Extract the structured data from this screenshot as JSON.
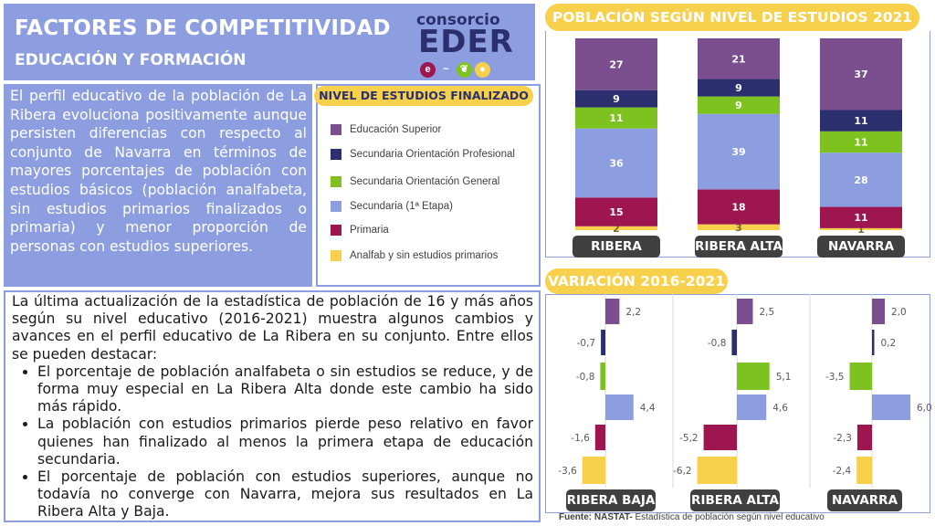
{
  "header": {
    "title": "FACTORES DE COMPETITIVIDAD",
    "subtitle": "EDUCACIÓN Y FORMACIÓN",
    "logo_top": "consorcio",
    "logo_main": "EDER"
  },
  "intro_text": "El perfil educativo de la población de La Ribera evoluciona positivamente aunque persisten diferencias con respecto al conjunto de Navarra en términos de mayores porcentajes de población con estudios básicos (población analfabeta, sin estudios primarios finalizados o primaria) y menor proporción de personas con estudios superiores.",
  "legend": {
    "title": "NIVEL DE ESTUDIOS FINALIZADO",
    "items": [
      {
        "label": "Educación Superior",
        "color": "#7b4f8f"
      },
      {
        "label": "Secundaria Orientación Profesional",
        "color": "#2b2f6e"
      },
      {
        "label": "Secundaria  Orientación General",
        "color": "#7dc21e"
      },
      {
        "label": "Secundaria (1ª Etapa)",
        "color": "#8d9ee0"
      },
      {
        "label": "Primaria",
        "color": "#9e1650"
      },
      {
        "label": "Analfab y sin estudios primarios",
        "color": "#f7d14c"
      }
    ]
  },
  "bottom": {
    "intro": "La última actualización de la estadística de población de 16 y más años según su nivel educativo (2016-2021) muestra algunos cambios y avances en el perfil educativo de La Ribera en su conjunto. Entre ellos se pueden destacar:",
    "bullets": [
      "El porcentaje de población analfabeta o sin estudios se reduce, y de forma muy especial en La Ribera Alta donde este cambio ha sido más rápido.",
      "La población con estudios primarios pierde peso relativo en favor quienes han finalizado al menos la primera etapa de educación secundaria.",
      "El porcentaje de población con estudios superiores, aunque no todavía no converge con Navarra, mejora sus resultados en La Ribera Alta y Baja."
    ]
  },
  "source": {
    "label": "Fuente: NASTAT-",
    "text": " Estadística de población según nivel educativo"
  },
  "chart_data": [
    {
      "type": "bar",
      "stacked": true,
      "title": "POBLACIÓN  SEGÚN NIVEL DE ESTUDIOS 2021 (%).",
      "categories": [
        "RIBERA BAJA",
        "RIBERA ALTA",
        "NAVARRA"
      ],
      "series": [
        {
          "name": "Analfab y sin estudios primarios",
          "color": "#f7d14c",
          "values": [
            2,
            3,
            1
          ]
        },
        {
          "name": "Primaria",
          "color": "#9e1650",
          "values": [
            15,
            18,
            11
          ]
        },
        {
          "name": "Secundaria (1ª Etapa)",
          "color": "#8d9ee0",
          "values": [
            36,
            39,
            28
          ]
        },
        {
          "name": "Secundaria  Orientación General",
          "color": "#7dc21e",
          "values": [
            11,
            9,
            11
          ]
        },
        {
          "name": "Secundaria Orientación Profesional",
          "color": "#2b2f6e",
          "values": [
            9,
            9,
            11
          ]
        },
        {
          "name": "Educación Superior",
          "color": "#7b4f8f",
          "values": [
            27,
            21,
            37
          ]
        }
      ],
      "ylim": [
        0,
        100
      ]
    },
    {
      "type": "bar",
      "orientation": "horizontal",
      "title": "VARIACIÓN 2016-2021",
      "categories": [
        "RIBERA BAJA",
        "RIBERA ALTA",
        "NAVARRA"
      ],
      "levels": [
        {
          "name": "Educación Superior",
          "color": "#7b4f8f"
        },
        {
          "name": "Secundaria Orientación Profesional",
          "color": "#2b2f6e"
        },
        {
          "name": "Secundaria  Orientación General",
          "color": "#7dc21e"
        },
        {
          "name": "Secundaria (1ª Etapa)",
          "color": "#8d9ee0"
        },
        {
          "name": "Primaria",
          "color": "#9e1650"
        },
        {
          "name": "Analfab y sin estudios primarios",
          "color": "#f7d14c"
        }
      ],
      "values": [
        [
          2.2,
          -0.7,
          -0.8,
          4.4,
          -1.6,
          -3.6
        ],
        [
          2.5,
          -0.8,
          5.1,
          4.6,
          -5.2,
          -6.2
        ],
        [
          2.0,
          0.2,
          -3.5,
          6.0,
          -2.3,
          -2.4
        ]
      ],
      "labels": [
        [
          "2,2",
          "-0,7",
          "-0,8",
          "4,4",
          "-1,6",
          "-3,6"
        ],
        [
          "2,5",
          "-0,8",
          "5,1",
          "4,6",
          "-5,2",
          "-6,2"
        ],
        [
          "2,0",
          "0,2",
          "-3,5",
          "6,0",
          "-2,3",
          "-2,4"
        ]
      ],
      "xlim": [
        -6.5,
        6.5
      ]
    }
  ]
}
